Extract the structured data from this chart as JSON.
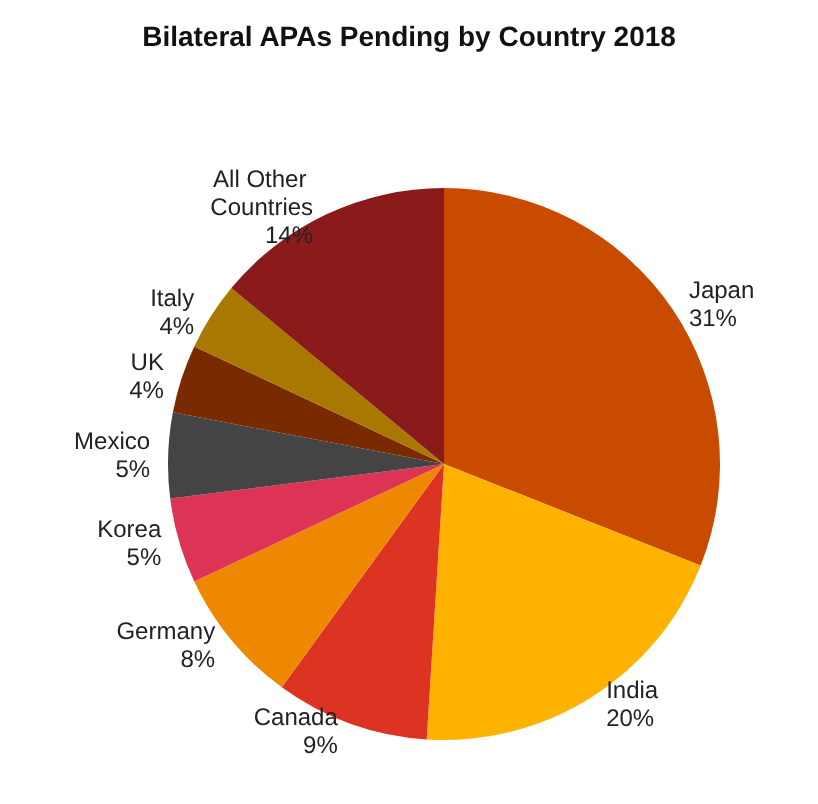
{
  "chart_data": {
    "type": "pie",
    "title": "Bilateral APAs Pending by Country 2018",
    "categories": [
      "Japan",
      "India",
      "Canada",
      "Germany",
      "Korea",
      "Mexico",
      "UK",
      "Italy",
      "All Other Countries"
    ],
    "values": [
      31,
      20,
      9,
      8,
      5,
      5,
      4,
      4,
      14
    ],
    "value_labels": [
      "31%",
      "20%",
      "9%",
      "8%",
      "5%",
      "5%",
      "4%",
      "4%",
      "14%"
    ],
    "colors": [
      "#c84b00",
      "#ffb300",
      "#dd3322",
      "#ee8800",
      "#dd3355",
      "#444444",
      "#7a2a00",
      "#a87800",
      "#8b1a1a"
    ],
    "legend": false
  }
}
